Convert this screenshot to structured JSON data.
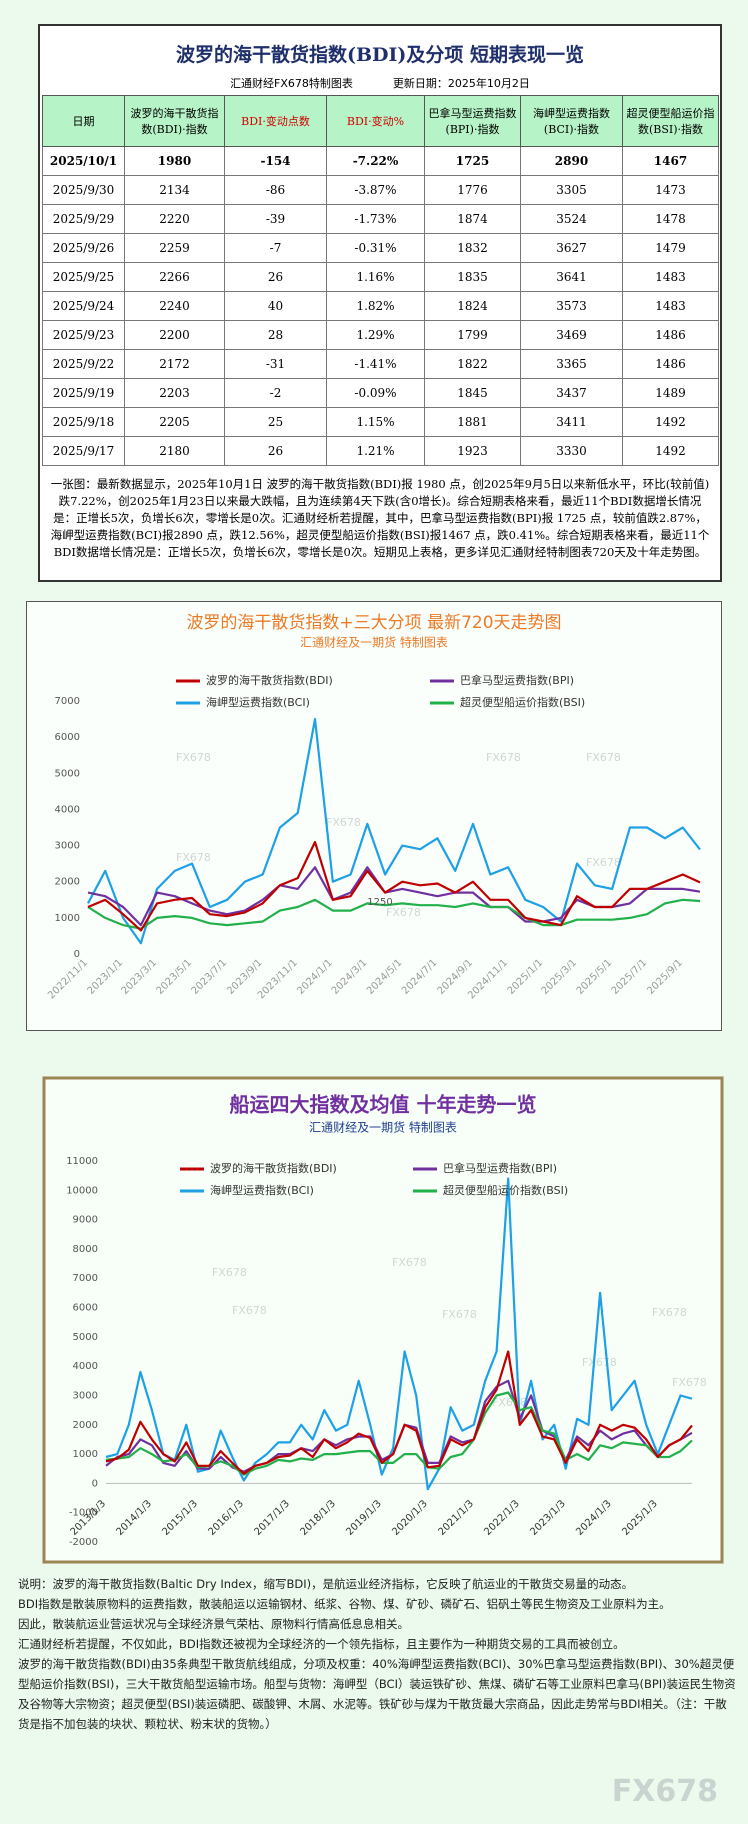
{
  "table": {
    "title": "波罗的海干散货指数(BDI)及分项 短期表现一览",
    "source": "汇通财经FX678特制图表",
    "updated": "更新日期：2025年10月2日",
    "headers": [
      "日期",
      "波罗的海干散货指数(BDI)·指数",
      "BDI·变动点数",
      "BDI·变动%",
      "巴拿马型运费指数(BPI)·指数",
      "海岬型运费指数(BCI)·指数",
      "超灵便型船运价指数(BSI)·指数"
    ],
    "rows": [
      [
        "2025/10/1",
        "1980",
        "-154",
        "-7.22%",
        "1725",
        "2890",
        "1467"
      ],
      [
        "2025/9/30",
        "2134",
        "-86",
        "-3.87%",
        "1776",
        "3305",
        "1473"
      ],
      [
        "2025/9/29",
        "2220",
        "-39",
        "-1.73%",
        "1874",
        "3524",
        "1478"
      ],
      [
        "2025/9/26",
        "2259",
        "-7",
        "-0.31%",
        "1832",
        "3627",
        "1479"
      ],
      [
        "2025/9/25",
        "2266",
        "26",
        "1.16%",
        "1835",
        "3641",
        "1483"
      ],
      [
        "2025/9/24",
        "2240",
        "40",
        "1.82%",
        "1824",
        "3573",
        "1483"
      ],
      [
        "2025/9/23",
        "2200",
        "28",
        "1.29%",
        "1799",
        "3469",
        "1486"
      ],
      [
        "2025/9/22",
        "2172",
        "-31",
        "-1.41%",
        "1822",
        "3365",
        "1486"
      ],
      [
        "2025/9/19",
        "2203",
        "-2",
        "-0.09%",
        "1845",
        "3437",
        "1489"
      ],
      [
        "2025/9/18",
        "2205",
        "25",
        "1.15%",
        "1881",
        "3411",
        "1492"
      ],
      [
        "2025/9/17",
        "2180",
        "26",
        "1.21%",
        "1923",
        "3330",
        "1492"
      ]
    ],
    "summary": "一张图：最新数据显示，2025年10月1日 波罗的海干散货指数(BDI)报 1980 点，创2025年9月5日以来新低水平，环比(较前值)跌7.22%，创2025年1月23日以来最大跌幅，且为连续第4天下跌(含0增长)。综合短期表格来看，最近11个BDI数据增长情况是：正增长5次，负增长6次，零增长是0次。汇通财经析若提醒，其中，巴拿马型运费指数(BPI)报 1725 点，较前值跌2.87%，海岬型运费指数(BCI)报2890 点，跌12.56%，超灵便型船运价指数(BSI)报1467 点，跌0.41%。综合短期表格来看，最近11个BDI数据增长情况是：正增长5次，负增长6次，零增长是0次。短期见上表格，更多详见汇通财经特制图表720天及十年走势图。"
  },
  "watermark": "FX678",
  "chart_data": [
    {
      "type": "line",
      "title": "波罗的海干散货指数+三大分项  最新720天走势图",
      "subtitle": "汇通财经及一期货  特制图表",
      "x": [
        "2022/11/1",
        "2022/12/1",
        "2023/1/1",
        "2023/2/1",
        "2023/3/1",
        "2023/4/1",
        "2023/5/1",
        "2023/6/1",
        "2023/7/1",
        "2023/8/1",
        "2023/9/1",
        "2023/10/1",
        "2023/11/1",
        "2023/12/1",
        "2024/1/1",
        "2024/2/1",
        "2024/3/1",
        "2024/4/1",
        "2024/5/1",
        "2024/6/1",
        "2024/7/1",
        "2024/8/1",
        "2024/9/1",
        "2024/10/1",
        "2024/11/1",
        "2024/12/1",
        "2025/1/1",
        "2025/2/1",
        "2025/3/1",
        "2025/4/1",
        "2025/5/1",
        "2025/6/1",
        "2025/7/1",
        "2025/8/1",
        "2025/9/1",
        "2025/10/1"
      ],
      "xlim": [
        "2022/11/1",
        "2025/10/1"
      ],
      "xticks": [
        "2022/11/1",
        "2023/1/1",
        "2023/3/1",
        "2023/5/1",
        "2023/7/1",
        "2023/9/1",
        "2023/11/1",
        "2024/1/1",
        "2024/3/1",
        "2024/5/1",
        "2024/7/1",
        "2024/9/1",
        "2024/11/1",
        "2025/1/1",
        "2025/3/1",
        "2025/5/1",
        "2025/7/1",
        "2025/9/1"
      ],
      "ylim": [
        0,
        7000
      ],
      "yticks": [
        0,
        1000,
        2000,
        3000,
        4000,
        5000,
        6000,
        7000
      ],
      "annotations": [
        {
          "text": "1250",
          "x": "2024/3/1",
          "y": 1250
        }
      ],
      "series": [
        {
          "name": "波罗的海干散货指数(BDI)",
          "color": "#c00000",
          "values": [
            1300,
            1500,
            1100,
            650,
            1400,
            1500,
            1550,
            1100,
            1050,
            1150,
            1400,
            1900,
            2100,
            3100,
            1500,
            1600,
            2300,
            1700,
            2000,
            1900,
            1950,
            1700,
            2000,
            1500,
            1500,
            1000,
            900,
            800,
            1600,
            1300,
            1300,
            1800,
            1800,
            2000,
            2200,
            1980
          ]
        },
        {
          "name": "巴拿马型运费指数(BPI)",
          "color": "#7030a0",
          "values": [
            1700,
            1600,
            1300,
            800,
            1700,
            1600,
            1400,
            1200,
            1100,
            1200,
            1500,
            1900,
            1800,
            2400,
            1500,
            1700,
            2400,
            1700,
            1800,
            1700,
            1600,
            1700,
            1700,
            1300,
            1300,
            900,
            900,
            1000,
            1500,
            1300,
            1300,
            1400,
            1800,
            1800,
            1800,
            1725
          ]
        },
        {
          "name": "海岬型运费指数(BCI)",
          "color": "#1ea0e6",
          "values": [
            1400,
            2300,
            1000,
            300,
            1800,
            2300,
            2500,
            1300,
            1500,
            2000,
            2200,
            3500,
            3900,
            6500,
            2000,
            2200,
            3600,
            2200,
            3000,
            2900,
            3200,
            2300,
            3600,
            2200,
            2400,
            1500,
            1300,
            900,
            2500,
            1900,
            1800,
            3500,
            3500,
            3200,
            3500,
            2890
          ]
        },
        {
          "name": "超灵便型船运价指数(BSI)",
          "color": "#22b04b",
          "values": [
            1300,
            1000,
            800,
            700,
            1000,
            1050,
            1000,
            850,
            800,
            850,
            900,
            1200,
            1300,
            1500,
            1200,
            1200,
            1400,
            1350,
            1400,
            1350,
            1350,
            1300,
            1400,
            1300,
            1300,
            1000,
            800,
            800,
            950,
            950,
            950,
            1000,
            1100,
            1400,
            1500,
            1467
          ]
        }
      ]
    },
    {
      "type": "line",
      "title": "船运四大指数及均值 十年走势一览",
      "subtitle": "汇通财经及一期货 特制图表",
      "x": [
        "2013/1/3",
        "2013/4/3",
        "2013/7/3",
        "2013/10/3",
        "2014/1/3",
        "2014/4/3",
        "2014/7/3",
        "2014/10/3",
        "2015/1/3",
        "2015/4/3",
        "2015/7/3",
        "2015/10/3",
        "2016/1/3",
        "2016/4/3",
        "2016/7/3",
        "2016/10/3",
        "2017/1/3",
        "2017/4/3",
        "2017/7/3",
        "2017/10/3",
        "2018/1/3",
        "2018/4/3",
        "2018/7/3",
        "2018/10/3",
        "2019/1/3",
        "2019/4/3",
        "2019/7/3",
        "2019/10/3",
        "2020/1/3",
        "2020/4/3",
        "2020/7/3",
        "2020/10/3",
        "2021/1/3",
        "2021/4/3",
        "2021/7/3",
        "2021/10/3",
        "2022/1/3",
        "2022/4/3",
        "2022/7/3",
        "2022/10/3",
        "2023/1/3",
        "2023/4/3",
        "2023/7/3",
        "2023/10/3",
        "2024/1/3",
        "2024/4/3",
        "2024/7/3",
        "2024/10/3",
        "2025/1/3",
        "2025/4/3",
        "2025/7/3",
        "2025/10/2"
      ],
      "xlim": [
        "2013/1/3",
        "2025/10/2"
      ],
      "xticks": [
        "2013/1/3",
        "2014/1/3",
        "2015/1/3",
        "2016/1/3",
        "2017/1/3",
        "2018/1/3",
        "2019/1/3",
        "2020/1/3",
        "2021/1/3",
        "2022/1/3",
        "2023/1/3",
        "2024/1/3",
        "2025/1/3"
      ],
      "ylim": [
        -2000,
        11000
      ],
      "yticks": [
        -2000,
        -1000,
        0,
        1000,
        2000,
        3000,
        4000,
        5000,
        6000,
        7000,
        8000,
        9000,
        10000,
        11000
      ],
      "series": [
        {
          "name": "波罗的海干散货指数(BDI)",
          "color": "#c00000",
          "values": [
            750,
            850,
            1150,
            2100,
            1500,
            1000,
            750,
            1400,
            600,
            600,
            1100,
            700,
            330,
            600,
            700,
            900,
            950,
            1200,
            900,
            1500,
            1200,
            1400,
            1700,
            1550,
            700,
            1000,
            2000,
            1800,
            550,
            600,
            1500,
            1300,
            1500,
            2600,
            3200,
            4500,
            2000,
            2500,
            1600,
            1500,
            700,
            1500,
            1100,
            2000,
            1800,
            2000,
            1900,
            1500,
            900,
            1300,
            1500,
            1980
          ]
        },
        {
          "name": "巴拿马型运费指数(BPI)",
          "color": "#7030a0",
          "values": [
            600,
            900,
            1000,
            1500,
            1300,
            700,
            600,
            1100,
            500,
            500,
            900,
            550,
            400,
            600,
            700,
            1000,
            1000,
            1200,
            1100,
            1500,
            1300,
            1500,
            1600,
            1600,
            800,
            1000,
            2000,
            1900,
            700,
            700,
            1600,
            1400,
            1500,
            2800,
            3300,
            3500,
            2200,
            3000,
            1800,
            1600,
            800,
            1600,
            1300,
            1800,
            1500,
            1700,
            1800,
            1300,
            900,
            1300,
            1500,
            1725
          ]
        },
        {
          "name": "海岬型运费指数(BCI)",
          "color": "#1ea0e6",
          "values": [
            900,
            1000,
            2000,
            3800,
            2500,
            1000,
            800,
            2000,
            400,
            500,
            1800,
            900,
            100,
            700,
            1000,
            1400,
            1400,
            2000,
            1500,
            2500,
            1800,
            2000,
            3500,
            2000,
            300,
            1200,
            4500,
            3000,
            -200,
            500,
            2600,
            1800,
            2000,
            3500,
            4500,
            10400,
            2000,
            3500,
            1500,
            2000,
            500,
            2200,
            2000,
            6500,
            2500,
            3000,
            3500,
            2000,
            1000,
            2000,
            3000,
            2890
          ]
        },
        {
          "name": "超灵便型船运价指数(BSI)",
          "color": "#22b04b",
          "values": [
            800,
            850,
            900,
            1200,
            1000,
            750,
            800,
            1000,
            550,
            600,
            750,
            600,
            300,
            500,
            600,
            800,
            750,
            850,
            800,
            1000,
            1000,
            1050,
            1100,
            1100,
            700,
            700,
            1000,
            1000,
            550,
            500,
            900,
            1000,
            1500,
            2400,
            3000,
            3100,
            2500,
            2600,
            1800,
            1700,
            800,
            1000,
            800,
            1300,
            1200,
            1400,
            1350,
            1300,
            900,
            900,
            1100,
            1467
          ]
        }
      ]
    }
  ],
  "notes": [
    "说明：波罗的海干散货指数(Baltic Dry Index，缩写BDI)，是航运业经济指标，它反映了航运业的干散货交易量的动态。",
    "BDI指数是散装原物料的运费指数，散装船运以运输钢材、纸浆、谷物、煤、矿砂、磷矿石、铝矾土等民生物资及工业原料为主。",
    "因此，散装航运业营运状况与全球经济景气荣枯、原物料行情高低息息相关。",
    "汇通财经析若提醒，不仅如此，BDI指数还被视为全球经济的一个领先指标，且主要作为一种期货交易的工具而被创立。",
    "波罗的海干散货指数(BDI)由35条典型干散货航线组成，分项及权重：40%海岬型运费指数(BCI)、30%巴拿马型运费指数(BPI)、30%超灵便型船运价指数(BSI)，三大干散货船型运输市场。船型与货物：海岬型（BCI）装运铁矿砂、焦煤、磷矿石等工业原料巴拿马(BPI)装运民生物资及谷物等大宗物资；超灵便型(BSI)装运磷肥、碳酸钾、木屑、水泥等。铁矿砂与煤为干散货最大宗商品，因此走势常与BDI相关。（注：干散货是指不加包装的块状、颗粒状、粉末状的货物。）"
  ]
}
